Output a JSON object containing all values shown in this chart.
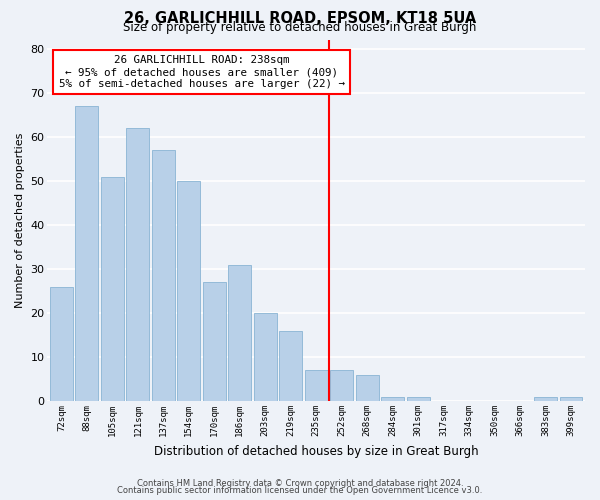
{
  "title": "26, GARLICHHILL ROAD, EPSOM, KT18 5UA",
  "subtitle": "Size of property relative to detached houses in Great Burgh",
  "xlabel": "Distribution of detached houses by size in Great Burgh",
  "ylabel": "Number of detached properties",
  "footer1": "Contains HM Land Registry data © Crown copyright and database right 2024.",
  "footer2": "Contains public sector information licensed under the Open Government Licence v3.0.",
  "bar_labels": [
    "72sqm",
    "88sqm",
    "105sqm",
    "121sqm",
    "137sqm",
    "154sqm",
    "170sqm",
    "186sqm",
    "203sqm",
    "219sqm",
    "235sqm",
    "252sqm",
    "268sqm",
    "284sqm",
    "301sqm",
    "317sqm",
    "334sqm",
    "350sqm",
    "366sqm",
    "383sqm",
    "399sqm"
  ],
  "bar_values": [
    26,
    67,
    51,
    62,
    57,
    50,
    27,
    31,
    20,
    16,
    7,
    7,
    6,
    1,
    1,
    0,
    0,
    0,
    0,
    1,
    1
  ],
  "bar_color": "#b8d0e8",
  "bar_edge_color": "#8ab4d4",
  "background_color": "#eef2f8",
  "grid_color": "#ffffff",
  "vline_x_index": 10,
  "vline_color": "red",
  "annotation_title": "26 GARLICHHILL ROAD: 238sqm",
  "annotation_line1": "← 95% of detached houses are smaller (409)",
  "annotation_line2": "5% of semi-detached houses are larger (22) →",
  "ylim": [
    0,
    82
  ],
  "yticks": [
    0,
    10,
    20,
    30,
    40,
    50,
    60,
    70,
    80
  ]
}
